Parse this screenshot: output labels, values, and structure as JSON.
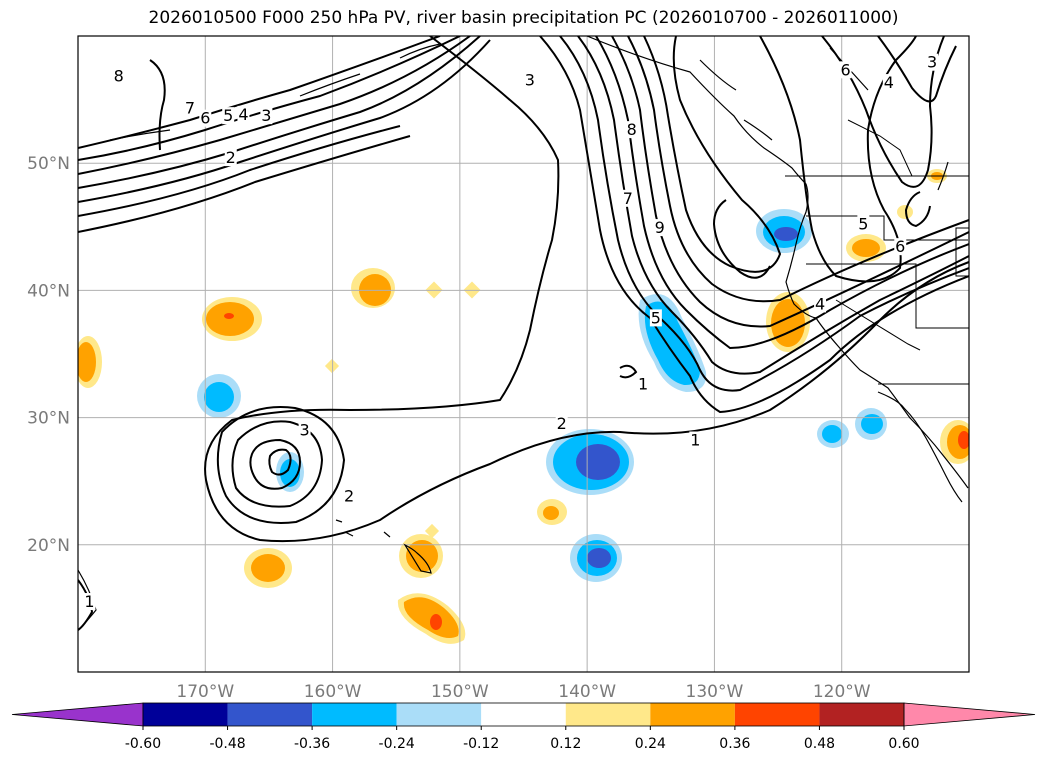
{
  "title": "2026010500 F000 250 hPa PV, river basin precipitation PC (2026010700 - 2026011000)",
  "map": {
    "projection": "cylindrical",
    "lon_range": [
      -180,
      -110
    ],
    "lat_range": [
      10,
      60
    ],
    "lat_ticks": [
      {
        "lat": 50,
        "label": "50°N"
      },
      {
        "lat": 40,
        "label": "40°N"
      },
      {
        "lat": 30,
        "label": "30°N"
      },
      {
        "lat": 20,
        "label": "20°N"
      }
    ],
    "lon_ticks": [
      {
        "lon": -170,
        "label": "170°W"
      },
      {
        "lon": -160,
        "label": "160°W"
      },
      {
        "lon": -150,
        "label": "150°W"
      },
      {
        "lon": -140,
        "label": "140°W"
      },
      {
        "lon": -130,
        "label": "130°W"
      },
      {
        "lon": -120,
        "label": "120°W"
      }
    ],
    "gridline_color": "#b0b0b0"
  },
  "pv_contour_labels": [
    {
      "value": "8",
      "lon": -176.8,
      "lat": 56.8
    },
    {
      "value": "7",
      "lon": -171.2,
      "lat": 54.3
    },
    {
      "value": "6",
      "lon": -170,
      "lat": 53.5
    },
    {
      "value": "5",
      "lon": -168.2,
      "lat": 53.7
    },
    {
      "value": "4",
      "lon": -167,
      "lat": 53.8
    },
    {
      "value": "3",
      "lon": -165.2,
      "lat": 53.7
    },
    {
      "value": "2",
      "lon": -168,
      "lat": 50.4
    },
    {
      "value": "3",
      "lon": -144.5,
      "lat": 56.5
    },
    {
      "value": "8",
      "lon": -136.5,
      "lat": 52.6
    },
    {
      "value": "7",
      "lon": -136.8,
      "lat": 47.2
    },
    {
      "value": "9",
      "lon": -134.3,
      "lat": 44.9
    },
    {
      "value": "5",
      "lon": -134.6,
      "lat": 37.8
    },
    {
      "value": "1",
      "lon": -135.6,
      "lat": 32.6
    },
    {
      "value": "2",
      "lon": -142,
      "lat": 29.5
    },
    {
      "value": "1",
      "lon": -131.5,
      "lat": 28.2
    },
    {
      "value": "3",
      "lon": -162.2,
      "lat": 29
    },
    {
      "value": "2",
      "lon": -158.7,
      "lat": 23.8
    },
    {
      "value": "4",
      "lon": -121.7,
      "lat": 38.9
    },
    {
      "value": "5",
      "lon": -118.3,
      "lat": 45.2
    },
    {
      "value": "6",
      "lon": -115.4,
      "lat": 43.4
    },
    {
      "value": "6",
      "lon": -119.7,
      "lat": 57.3
    },
    {
      "value": "4",
      "lon": -116.3,
      "lat": 56.3
    },
    {
      "value": "3",
      "lon": -112.9,
      "lat": 57.9
    },
    {
      "value": "1",
      "lon": -179.1,
      "lat": 15.5
    }
  ],
  "colorbar": {
    "levels": [
      "-0.60",
      "-0.48",
      "-0.36",
      "-0.24",
      "-0.12",
      "0.12",
      "0.24",
      "0.36",
      "0.48",
      "0.60"
    ],
    "colors": [
      "#9933cc",
      "#000099",
      "#3355cc",
      "#00bbff",
      "#aaddf8",
      "#ffffff",
      "#ffe88a",
      "#ffa200",
      "#ff4400",
      "#b22222",
      "#ff88aa"
    ]
  },
  "precip_colors": {
    "lt_n036": "#3355cc",
    "lt_n024": "#00bbff",
    "lt_n012": "#aaddf8",
    "gt_012": "#ffe88a",
    "gt_024": "#ffa200",
    "gt_036": "#ff4400"
  }
}
